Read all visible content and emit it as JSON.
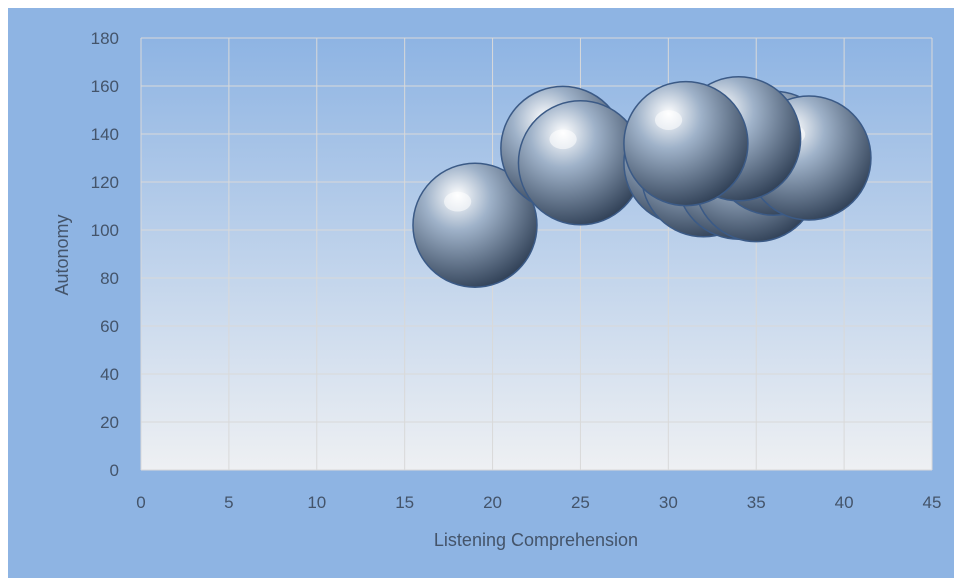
{
  "chart_data": {
    "type": "scatter",
    "subtype": "bubble",
    "title": "",
    "xlabel": "Listening Comprehension",
    "ylabel": "Autonomy",
    "xlim": [
      0,
      45
    ],
    "ylim": [
      0,
      180
    ],
    "x_ticks": [
      "0",
      "5",
      "10",
      "15",
      "20",
      "25",
      "30",
      "35",
      "40",
      "45"
    ],
    "y_ticks": [
      "0",
      "20",
      "40",
      "60",
      "80",
      "100",
      "120",
      "140",
      "160",
      "180"
    ],
    "grid": true,
    "legend": "none",
    "colors": {
      "outer_bg": "#8eb4e3",
      "plot_bg_top": "#8eb4e3",
      "plot_bg_bottom": "#eef0f3",
      "grid": "#d9d9d9",
      "bubble_light": "#ffffff",
      "bubble_mid": "#9fb2c9",
      "bubble_dark": "#2f3f55",
      "text": "#44546a"
    },
    "points": [
      {
        "x": 19,
        "y": 102
      },
      {
        "x": 24,
        "y": 134
      },
      {
        "x": 25,
        "y": 128
      },
      {
        "x": 31,
        "y": 128
      },
      {
        "x": 32,
        "y": 123
      },
      {
        "x": 34,
        "y": 122
      },
      {
        "x": 35,
        "y": 121
      },
      {
        "x": 36,
        "y": 132
      },
      {
        "x": 38,
        "y": 130
      },
      {
        "x": 34,
        "y": 138
      },
      {
        "x": 31,
        "y": 136
      }
    ]
  }
}
